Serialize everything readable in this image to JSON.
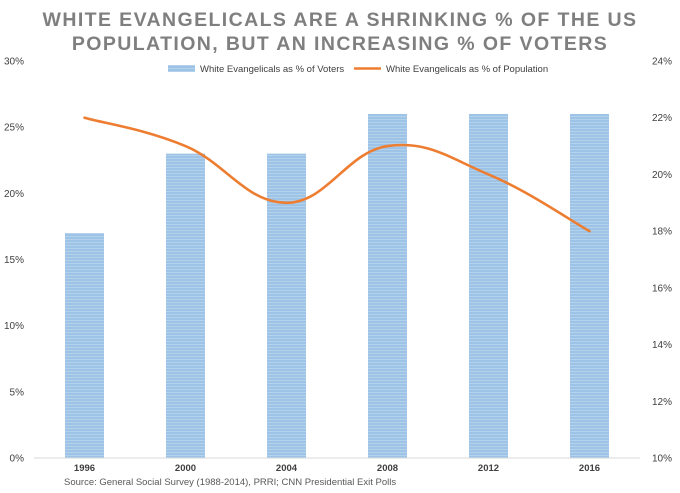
{
  "chart_data": {
    "type": "bar",
    "title_line1": "WHITE EVANGELICALS ARE A SHRINKING % OF THE US",
    "title_line2": "POPULATION, BUT AN INCREASING % OF VOTERS",
    "categories": [
      "1996",
      "2000",
      "2004",
      "2008",
      "2012",
      "2016"
    ],
    "series": [
      {
        "name": "White Evangelicals as % of Voters",
        "type": "bar",
        "axis": "left",
        "values": [
          17,
          23,
          23,
          26,
          26,
          26
        ],
        "color": "#9dc3e6"
      },
      {
        "name": "White Evangelicals as % of Population",
        "type": "line",
        "axis": "right",
        "values": [
          22,
          21,
          19,
          21,
          20,
          18
        ],
        "color": "#ed7d31"
      }
    ],
    "y_left": {
      "min": 0,
      "max": 30,
      "step": 5,
      "ticks": [
        "0%",
        "5%",
        "10%",
        "15%",
        "20%",
        "25%",
        "30%"
      ]
    },
    "y_right": {
      "min": 10,
      "max": 24,
      "step": 2,
      "ticks": [
        "10%",
        "12%",
        "14%",
        "16%",
        "18%",
        "20%",
        "22%",
        "24%"
      ]
    },
    "grid": false,
    "legend_position": "top",
    "source": "Source: General Social Survey (1988-2014), PRRI; CNN Presidential Exit Polls"
  }
}
